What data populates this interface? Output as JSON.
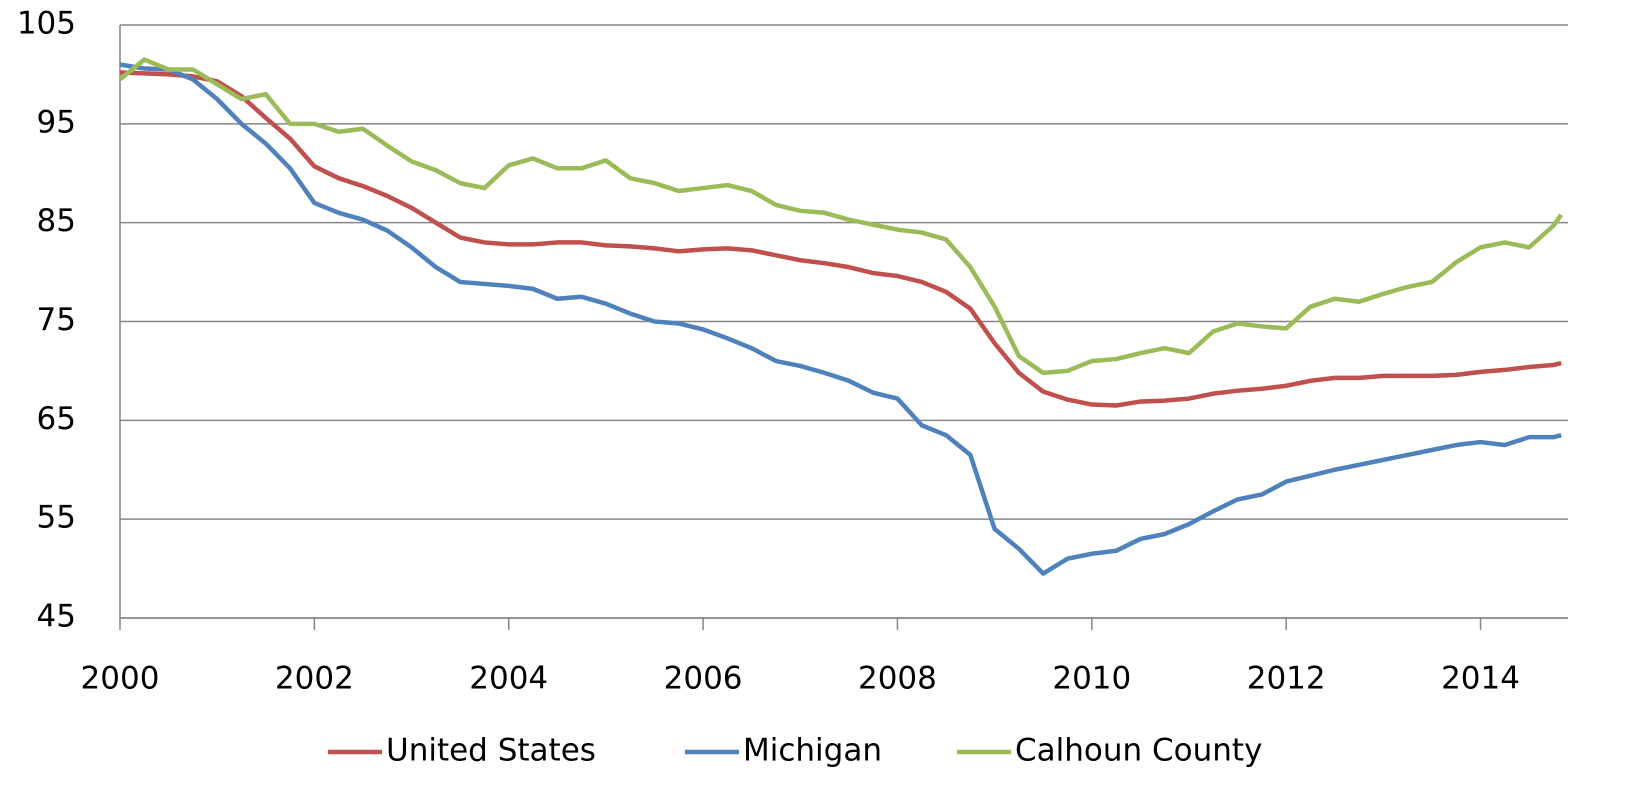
{
  "chart_data": {
    "type": "line",
    "x": [
      2000,
      2000.25,
      2000.5,
      2000.75,
      2001,
      2001.25,
      2001.5,
      2001.75,
      2002,
      2002.25,
      2002.5,
      2002.75,
      2003,
      2003.25,
      2003.5,
      2003.75,
      2004,
      2004.25,
      2004.5,
      2004.75,
      2005,
      2005.25,
      2005.5,
      2005.75,
      2006,
      2006.25,
      2006.5,
      2006.75,
      2007,
      2007.25,
      2007.5,
      2007.75,
      2008,
      2008.25,
      2008.5,
      2008.75,
      2009,
      2009.25,
      2009.5,
      2009.75,
      2010,
      2010.25,
      2010.5,
      2010.75,
      2011,
      2011.25,
      2011.5,
      2011.75,
      2012,
      2012.25,
      2012.5,
      2012.75,
      2013,
      2013.25,
      2013.5,
      2013.75,
      2014,
      2014.25,
      2014.5,
      2014.75,
      2014.83
    ],
    "series": [
      {
        "name": "United States",
        "color": "#c0504d",
        "values": [
          100.2,
          100.1,
          100,
          99.8,
          99.3,
          97.8,
          95.6,
          93.5,
          90.7,
          89.5,
          88.7,
          87.7,
          86.5,
          85.0,
          83.5,
          83.0,
          82.8,
          82.8,
          83.0,
          83.0,
          82.7,
          82.6,
          82.4,
          82.1,
          82.3,
          82.4,
          82.2,
          81.7,
          81.2,
          80.9,
          80.5,
          79.9,
          79.6,
          79.0,
          78.0,
          76.3,
          72.8,
          69.8,
          67.9,
          67.1,
          66.6,
          66.5,
          66.9,
          67.0,
          67.2,
          67.7,
          68.0,
          68.2,
          68.5,
          69.0,
          69.3,
          69.3,
          69.5,
          69.5,
          69.5,
          69.6,
          69.9,
          70.1,
          70.4,
          70.6,
          70.8
        ]
      },
      {
        "name": "Michigan",
        "color": "#4f81bd",
        "values": [
          101,
          100.6,
          100.5,
          99.5,
          97.5,
          95,
          93,
          90.5,
          87,
          86,
          85.3,
          84.2,
          82.5,
          80.5,
          79,
          78.8,
          78.6,
          78.3,
          77.3,
          77.5,
          76.8,
          75.8,
          75,
          74.8,
          74.2,
          73.3,
          72.3,
          71,
          70.5,
          69.8,
          69,
          67.8,
          67.2,
          64.5,
          63.5,
          61.5,
          54,
          52,
          49.5,
          51,
          51.5,
          51.8,
          53,
          53.5,
          54.5,
          55.8,
          57,
          57.5,
          58.8,
          59.4,
          60,
          60.5,
          61,
          61.5,
          62,
          62.5,
          62.8,
          62.5,
          63.3,
          63.3,
          63.5
        ]
      },
      {
        "name": "Calhoun County",
        "color": "#9bbb59",
        "values": [
          99.5,
          101.5,
          100.5,
          100.5,
          99,
          97.5,
          98,
          95,
          95,
          94.2,
          94.5,
          92.8,
          91.2,
          90.3,
          89,
          88.5,
          90.8,
          91.5,
          90.5,
          90.5,
          91.3,
          89.5,
          89,
          88.2,
          88.5,
          88.8,
          88.2,
          86.8,
          86.2,
          86,
          85.3,
          84.8,
          84.3,
          84,
          83.3,
          80.5,
          76.5,
          71.5,
          69.8,
          70,
          71,
          71.2,
          71.8,
          72.3,
          71.8,
          74,
          74.8,
          74.5,
          74.3,
          76.5,
          77.3,
          77,
          77.8,
          78.5,
          79,
          81,
          82.5,
          83,
          82.5,
          84.7,
          85.8
        ]
      }
    ],
    "xlim": [
      2000,
      2014.9
    ],
    "xticks": [
      2000,
      2002,
      2004,
      2006,
      2008,
      2010,
      2012,
      2014
    ],
    "ylim": [
      45,
      105
    ],
    "yticks": [
      45,
      55,
      65,
      75,
      85,
      95,
      105
    ],
    "grid": true,
    "legend": "bottom"
  }
}
